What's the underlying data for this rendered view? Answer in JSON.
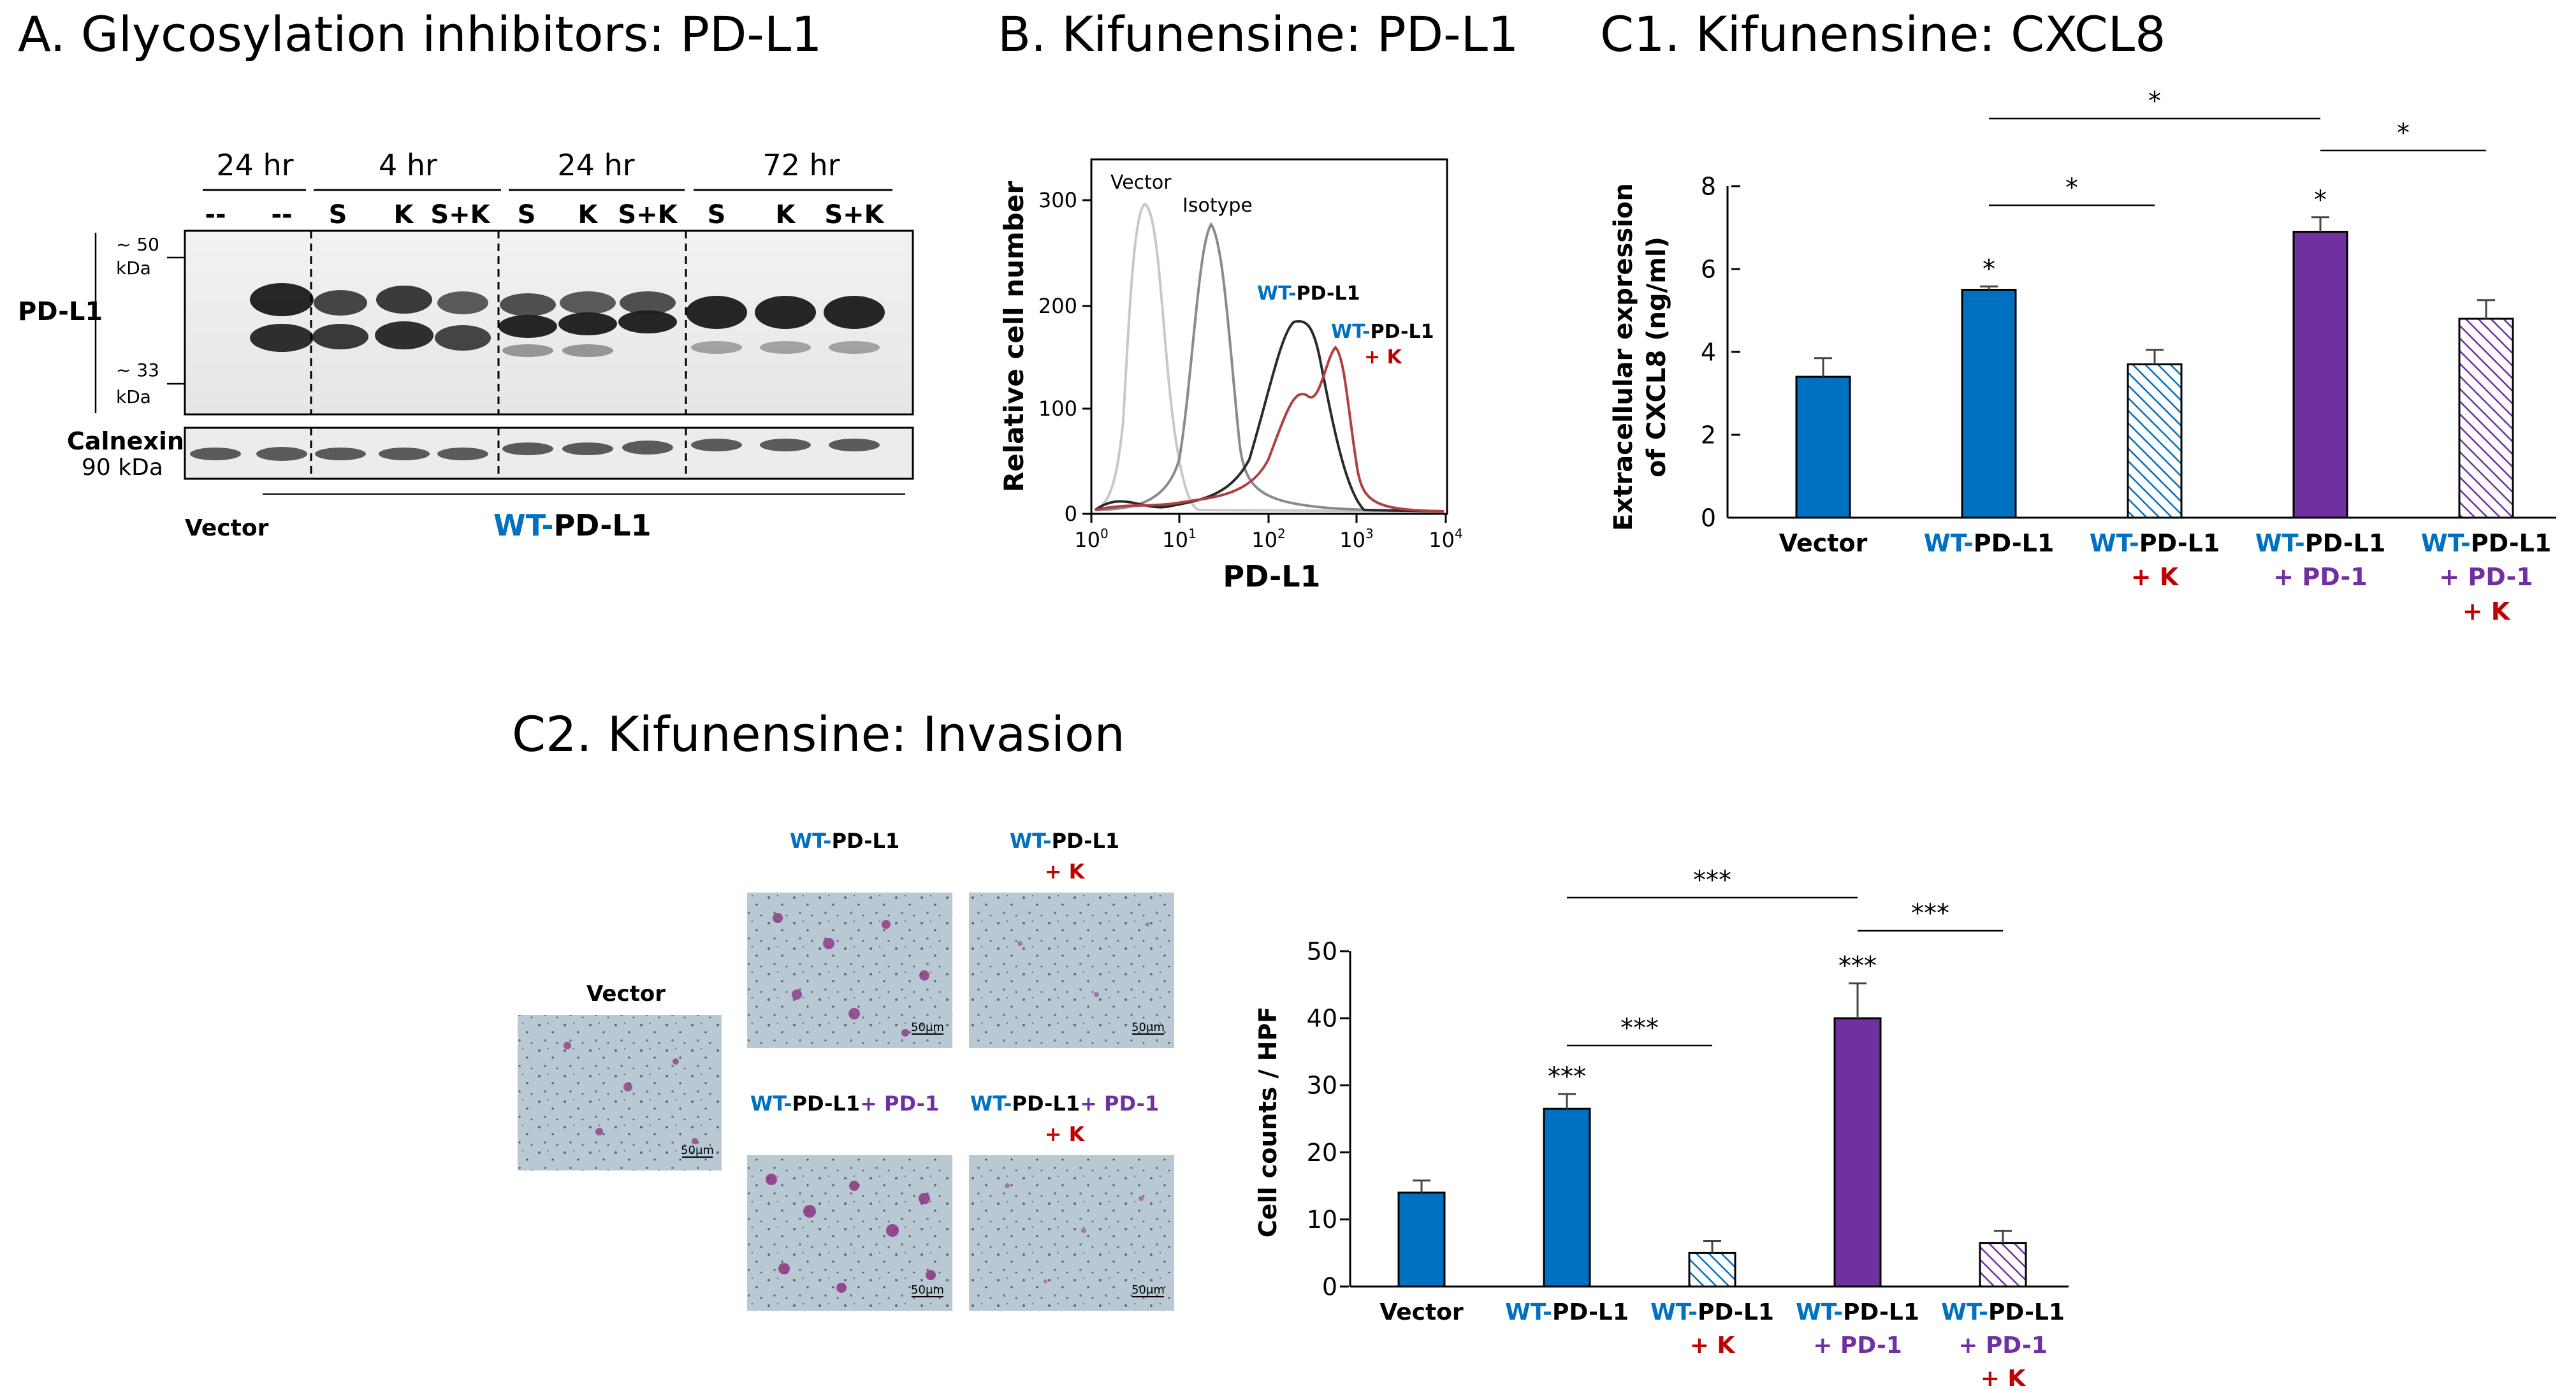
{
  "colors": {
    "blue": "#0070c0",
    "purple": "#7030a0",
    "red": "#c00000",
    "black": "#000000"
  },
  "panelA": {
    "title": "A. Glycosylation inhibitors: PD-L1",
    "time_labels": [
      "24 hr",
      "4 hr",
      "24 hr",
      "72 hr"
    ],
    "lane_labels": [
      "--",
      "--",
      "S",
      "K",
      "S+K",
      "S",
      "K",
      "S+K",
      "S",
      "K",
      "S+K"
    ],
    "mw_top": [
      "~ 50",
      "kDa"
    ],
    "mw_bottom": [
      "~ 33",
      "kDa"
    ],
    "pdl1_label": "PD-L1",
    "calnexin_label": "Calnexin",
    "calnexin_kda": "90 kDa",
    "vector_label": "Vector",
    "wt_prefix": "WT-",
    "pdl1_suffix": "PD-L1"
  },
  "panelB": {
    "title": "B. Kifunensine: PD-L1",
    "ylabel": "Relative cell number",
    "xlabel": "PD-L1",
    "yticks": [
      "0",
      "100",
      "200",
      "300"
    ],
    "xticks_base": [
      "10",
      "10",
      "10",
      "10",
      "10"
    ],
    "xticks_exp": [
      "0",
      "1",
      "2",
      "3",
      "4"
    ],
    "vector_label": "Vector",
    "isotype_label": "Isotype",
    "wt1_prefix": "WT-",
    "wt1_suffix": "PD-L1",
    "wt2_prefix": "WT-",
    "wt2_suffix": "PD-L1",
    "plus_k": "+ K"
  },
  "chart_data": [
    {
      "type": "bar",
      "title": "C1. Kifunensine: CXCL8",
      "ylabel_line1": "Extracellular expression",
      "ylabel_line2": "of CXCL8 (ng/ml)",
      "ylim": [
        0,
        8
      ],
      "yticks": [
        "0",
        "2",
        "4",
        "6",
        "8"
      ],
      "values": [
        3.4,
        5.5,
        3.7,
        6.9,
        4.8
      ],
      "errors": [
        0.45,
        0.08,
        0.35,
        0.35,
        0.45
      ],
      "patterns": [
        "solid-blue",
        "solid-blue",
        "hatch-blue",
        "solid-purple",
        "hatch-purple"
      ],
      "bar_stars": [
        "",
        "*",
        "",
        "*",
        ""
      ],
      "brackets": [
        {
          "from": 1,
          "to": 3,
          "label": "*"
        },
        {
          "from": 1,
          "to": 2,
          "label": "*"
        },
        {
          "from": 3,
          "to": 4,
          "label": "*"
        }
      ]
    },
    {
      "type": "bar",
      "title": "C2. Kifunensine: Invasion",
      "ylabel": "Cell counts / HPF",
      "ylim": [
        0,
        50
      ],
      "yticks": [
        "0",
        "10",
        "20",
        "30",
        "40",
        "50"
      ],
      "values": [
        14,
        26.5,
        5,
        40,
        6.5
      ],
      "errors": [
        1.8,
        2.2,
        1.8,
        5.2,
        1.8
      ],
      "patterns": [
        "solid-blue",
        "solid-blue",
        "hatch-blue",
        "solid-purple",
        "hatch-purple"
      ],
      "bar_stars": [
        "",
        "***",
        "",
        "***",
        ""
      ],
      "brackets": [
        {
          "from": 1,
          "to": 3,
          "label": "***"
        },
        {
          "from": 1,
          "to": 2,
          "label": "***"
        },
        {
          "from": 3,
          "to": 4,
          "label": "***"
        }
      ]
    }
  ],
  "categories": {
    "vector": "Vector",
    "wt": "WT-",
    "pdl1": "PD-L1",
    "plus_k": "+ K",
    "plus_pd1": "+ PD-1"
  },
  "panelC2_images": {
    "vector": "Vector",
    "wt_prefix": "WT-",
    "pdl1": "PD-L1",
    "plus_k": "+ K",
    "plus_pd1": "+ PD-1",
    "scale": "50μm"
  }
}
